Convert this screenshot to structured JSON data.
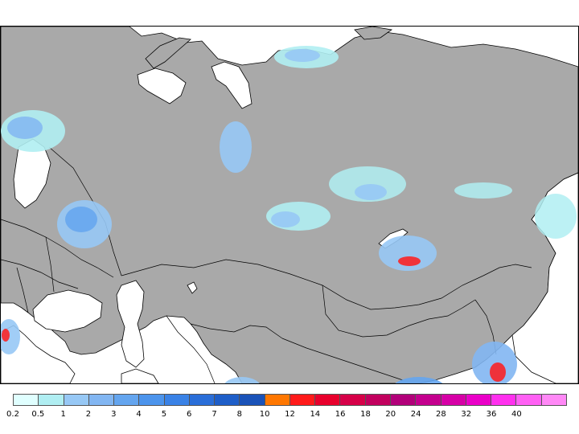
{
  "map": {
    "region": "Eurasia",
    "land_color": "#a9a9a9",
    "water_color": "#ffffff",
    "border_color": "#000000"
  },
  "legend": {
    "bins": [
      {
        "label": "0.2",
        "color": "#e0ffff"
      },
      {
        "label": "0.5",
        "color": "#b0eef2"
      },
      {
        "label": "1",
        "color": "#97c8f5"
      },
      {
        "label": "2",
        "color": "#82b6f2"
      },
      {
        "label": "3",
        "color": "#64a5ef"
      },
      {
        "label": "4",
        "color": "#4c94ec"
      },
      {
        "label": "5",
        "color": "#3a82e6"
      },
      {
        "label": "6",
        "color": "#2a6ed8"
      },
      {
        "label": "7",
        "color": "#1e5ec8"
      },
      {
        "label": "8",
        "color": "#1a52b8"
      },
      {
        "label": "10",
        "color": "#ff7700"
      },
      {
        "label": "12",
        "color": "#ff1a1a"
      },
      {
        "label": "14",
        "color": "#e8002c"
      },
      {
        "label": "16",
        "color": "#d60048"
      },
      {
        "label": "18",
        "color": "#c2005e"
      },
      {
        "label": "20",
        "color": "#b2007a"
      },
      {
        "label": "24",
        "color": "#c4008e"
      },
      {
        "label": "28",
        "color": "#d600a6"
      },
      {
        "label": "32",
        "color": "#ea00c8"
      },
      {
        "label": "36",
        "color": "#ff30ee"
      },
      {
        "label": "40",
        "color": "#ff60f4"
      },
      {
        "label": "",
        "color": "#ff88f6"
      }
    ]
  }
}
